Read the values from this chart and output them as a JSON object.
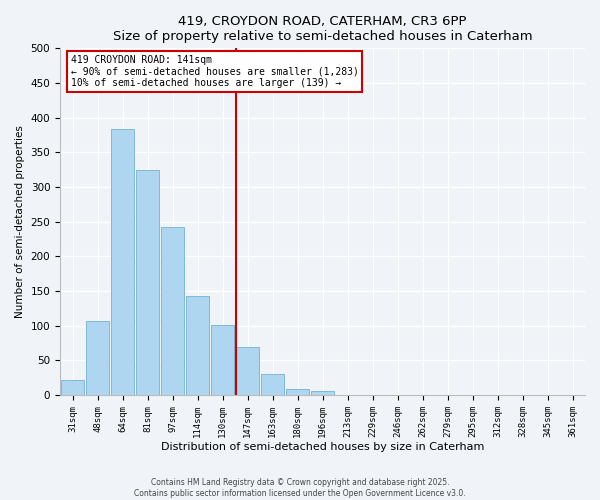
{
  "title": "419, CROYDON ROAD, CATERHAM, CR3 6PP",
  "subtitle": "Size of property relative to semi-detached houses in Caterham",
  "xlabel": "Distribution of semi-detached houses by size in Caterham",
  "ylabel": "Number of semi-detached properties",
  "bar_labels": [
    "31sqm",
    "48sqm",
    "64sqm",
    "81sqm",
    "97sqm",
    "114sqm",
    "130sqm",
    "147sqm",
    "163sqm",
    "180sqm",
    "196sqm",
    "213sqm",
    "229sqm",
    "246sqm",
    "262sqm",
    "279sqm",
    "295sqm",
    "312sqm",
    "328sqm",
    "345sqm",
    "361sqm"
  ],
  "bar_values": [
    21,
    107,
    383,
    325,
    243,
    143,
    101,
    69,
    30,
    8,
    6,
    0,
    0,
    0,
    0,
    0,
    0,
    0,
    0,
    0,
    0
  ],
  "bar_color": "#aed6f1",
  "bar_edge_color": "#7fb9d8",
  "vline_index": 7,
  "annotation_title": "419 CROYDON ROAD: 141sqm",
  "annotation_line1": "← 90% of semi-detached houses are smaller (1,283)",
  "annotation_line2": "10% of semi-detached houses are larger (139) →",
  "vline_color": "#cc0000",
  "annotation_box_facecolor": "#ffffff",
  "annotation_box_edgecolor": "#cc0000",
  "ylim": [
    0,
    500
  ],
  "yticks": [
    0,
    50,
    100,
    150,
    200,
    250,
    300,
    350,
    400,
    450,
    500
  ],
  "background_color": "#f0f4f8",
  "grid_color": "#ffffff",
  "footer_line1": "Contains HM Land Registry data © Crown copyright and database right 2025.",
  "footer_line2": "Contains public sector information licensed under the Open Government Licence v3.0."
}
